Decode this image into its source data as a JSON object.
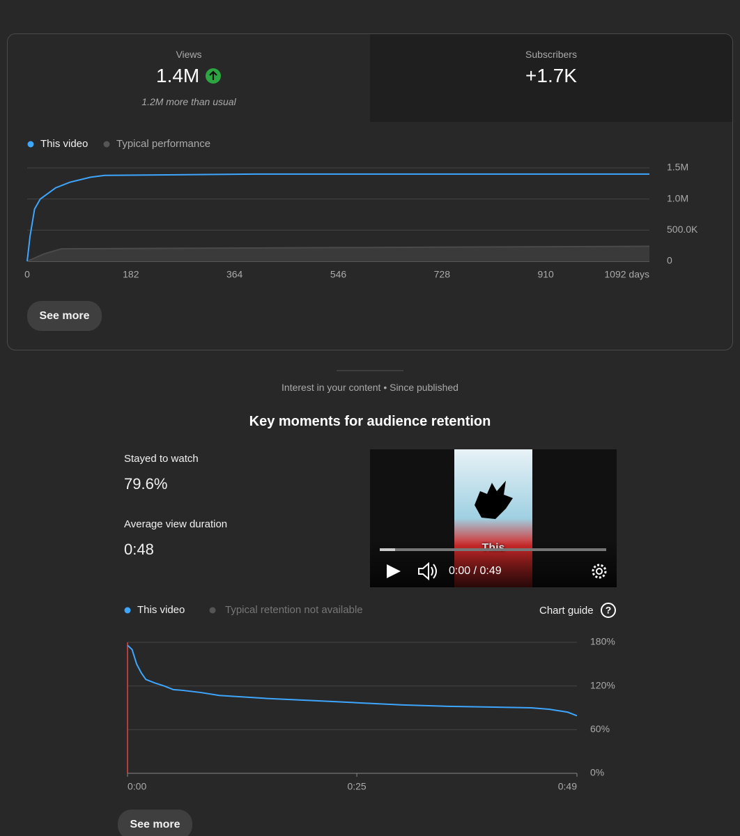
{
  "stats": [
    {
      "label": "Views",
      "value": "1.4M",
      "note": "1.2M more than usual"
    },
    {
      "label": "Subscribers",
      "value": "+1.7K"
    }
  ],
  "buttons": [
    "See more",
    "See more"
  ],
  "section_label": "Interest in your content • Since published",
  "retention_title": "Key moments for audience retention",
  "retention_stats": [
    {
      "label": "Stayed to watch",
      "value": "79.6%"
    },
    {
      "label": "Average view duration",
      "value": "0:48"
    }
  ],
  "video": {
    "caption": "This",
    "time": "0:00 / 0:49"
  },
  "chart_guide": "Chart guide",
  "legend_note": "Typical retention not available",
  "chart_data": [
    {
      "type": "line",
      "series": [
        {
          "name": "This video",
          "color": "#3ea6ff",
          "x": [
            0,
            5,
            13,
            23,
            35,
            50,
            75,
            111,
            136,
            399,
            1092
          ],
          "values": [
            0,
            400000,
            840000,
            1000000,
            1080000,
            1180000,
            1270000,
            1350000,
            1380000,
            1400000,
            1400000
          ]
        },
        {
          "name": "Typical performance",
          "color": "#555555",
          "x": [
            0,
            30,
            60,
            300,
            1092
          ],
          "values": [
            0,
            120000,
            200000,
            210000,
            240000
          ]
        }
      ],
      "xlim": [
        0,
        1092
      ],
      "xticks": [
        0,
        182,
        364,
        546,
        728,
        910,
        {
          "value": 1092,
          "label": "1092 days"
        }
      ],
      "ylim": [
        0,
        1500000
      ],
      "yticks": [
        0,
        {
          "value": 500000,
          "label": "500.0K"
        },
        {
          "value": 1000000,
          "label": "1.0M"
        },
        {
          "value": 1500000,
          "label": "1.5M"
        }
      ],
      "grid": true
    },
    {
      "type": "line",
      "x": [
        0,
        0.5,
        1,
        1.5,
        2,
        3,
        4,
        5,
        6,
        8,
        10,
        15,
        20,
        25,
        30,
        35,
        40,
        44,
        46,
        48,
        49
      ],
      "series": [
        {
          "name": "This video",
          "color": "#3ea6ff",
          "values": [
            176,
            170,
            150,
            138,
            129,
            124,
            120,
            115,
            114,
            111,
            107,
            103,
            100,
            97,
            94,
            92,
            91,
            90,
            88,
            84,
            79
          ]
        }
      ],
      "xlim": [
        0,
        49
      ],
      "xticks": [
        {
          "value": 0,
          "label": "0:00"
        },
        {
          "value": 25,
          "label": "0:25"
        },
        {
          "value": 49,
          "label": "0:49"
        }
      ],
      "ylim": [
        0,
        180
      ],
      "yticks": [
        {
          "value": 0,
          "label": "0%"
        },
        {
          "value": 60,
          "label": "60%"
        },
        {
          "value": 120,
          "label": "120%"
        },
        {
          "value": 180,
          "label": "180%"
        }
      ],
      "grid": true
    }
  ]
}
